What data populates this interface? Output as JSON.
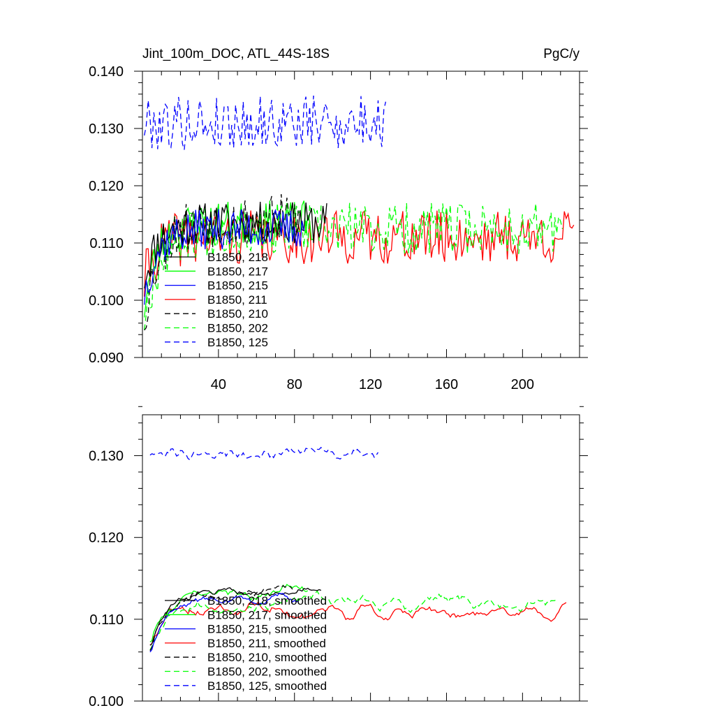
{
  "chart_data": [
    {
      "type": "line",
      "title": "Jint_100m_DOC, ATL_44S-18S",
      "units": "PgC/y",
      "xlim": [
        0,
        230
      ],
      "ylim": [
        0.09,
        0.14
      ],
      "xticks": [
        40,
        80,
        120,
        160,
        200
      ],
      "xtick_labels": [
        "40",
        "80",
        "120",
        "160",
        "200"
      ],
      "yticks": [
        0.09,
        0.1,
        0.11,
        0.12,
        0.13,
        0.14
      ],
      "ytick_labels": [
        "0.090",
        "0.100",
        "0.110",
        "0.120",
        "0.130",
        "0.140"
      ],
      "legend_position": "lower-left",
      "series": [
        {
          "name": "B1850, 218",
          "color": "#000000",
          "dash": "solid",
          "range": [
            1,
            97
          ],
          "start": 0.104,
          "level": 0.1135,
          "tau": 7,
          "noise": 0.0022,
          "seed": 11
        },
        {
          "name": "B1850, 217",
          "color": "#00ff00",
          "dash": "solid",
          "range": [
            1,
            90
          ],
          "start": 0.099,
          "level": 0.1135,
          "tau": 7,
          "noise": 0.0023,
          "seed": 23
        },
        {
          "name": "B1850, 215",
          "color": "#0000ff",
          "dash": "solid",
          "range": [
            1,
            85
          ],
          "start": 0.101,
          "level": 0.1125,
          "tau": 7,
          "noise": 0.0021,
          "seed": 37
        },
        {
          "name": "B1850, 211",
          "color": "#ff0000",
          "dash": "solid",
          "range": [
            1,
            227
          ],
          "start": 0.103,
          "level": 0.111,
          "tau": 6,
          "noise": 0.0028,
          "seed": 41
        },
        {
          "name": "B1850, 210",
          "color": "#000000",
          "dash": "8,5",
          "range": [
            1,
            82
          ],
          "start": 0.097,
          "level": 0.114,
          "tau": 8,
          "noise": 0.0027,
          "seed": 53
        },
        {
          "name": "B1850, 202",
          "color": "#00ff00",
          "dash": "8,5",
          "range": [
            1,
            221
          ],
          "start": 0.097,
          "level": 0.1125,
          "tau": 8,
          "noise": 0.0027,
          "seed": 67
        },
        {
          "name": "B1850, 125",
          "color": "#0000ff",
          "dash": "8,5",
          "range": [
            1,
            128
          ],
          "start": 0.131,
          "level": 0.131,
          "tau": 1,
          "noise": 0.0028,
          "seed": 79
        }
      ]
    },
    {
      "type": "line",
      "xlim": [
        0,
        230
      ],
      "ylim": [
        0.1,
        0.135
      ],
      "xticks": [
        40,
        80,
        120,
        160,
        200
      ],
      "yticks": [
        0.1,
        0.11,
        0.12,
        0.13
      ],
      "ytick_labels": [
        "0.100",
        "0.110",
        "0.120",
        "0.130"
      ],
      "legend_position": "lower-left",
      "series": [
        {
          "name": "B1850, 218, smoothed",
          "color": "#000000",
          "dash": "solid",
          "range": [
            4,
            94
          ],
          "start": 0.104,
          "level": 0.1135,
          "tau": 8,
          "noise": 0.0006,
          "seed": 11
        },
        {
          "name": "B1850, 217, smoothed",
          "color": "#00ff00",
          "dash": "solid",
          "range": [
            4,
            87
          ],
          "start": 0.104,
          "level": 0.1135,
          "tau": 8,
          "noise": 0.0008,
          "seed": 23
        },
        {
          "name": "B1850, 215, smoothed",
          "color": "#0000ff",
          "dash": "solid",
          "range": [
            4,
            82
          ],
          "start": 0.104,
          "level": 0.1125,
          "tau": 8,
          "noise": 0.0006,
          "seed": 37
        },
        {
          "name": "B1850, 211, smoothed",
          "color": "#ff0000",
          "dash": "solid",
          "range": [
            4,
            223
          ],
          "start": 0.105,
          "level": 0.111,
          "tau": 7,
          "noise": 0.0009,
          "seed": 41
        },
        {
          "name": "B1850, 210, smoothed",
          "color": "#000000",
          "dash": "8,5",
          "range": [
            4,
            79
          ],
          "start": 0.104,
          "level": 0.1135,
          "tau": 8,
          "noise": 0.0008,
          "seed": 53
        },
        {
          "name": "B1850, 202, smoothed",
          "color": "#00ff00",
          "dash": "8,5",
          "range": [
            4,
            218
          ],
          "start": 0.105,
          "level": 0.112,
          "tau": 8,
          "noise": 0.0009,
          "seed": 67
        },
        {
          "name": "B1850, 125, smoothed",
          "color": "#0000ff",
          "dash": "8,5",
          "range": [
            4,
            124
          ],
          "start": 0.1305,
          "level": 0.1305,
          "tau": 1,
          "noise": 0.0009,
          "seed": 79
        }
      ]
    }
  ]
}
